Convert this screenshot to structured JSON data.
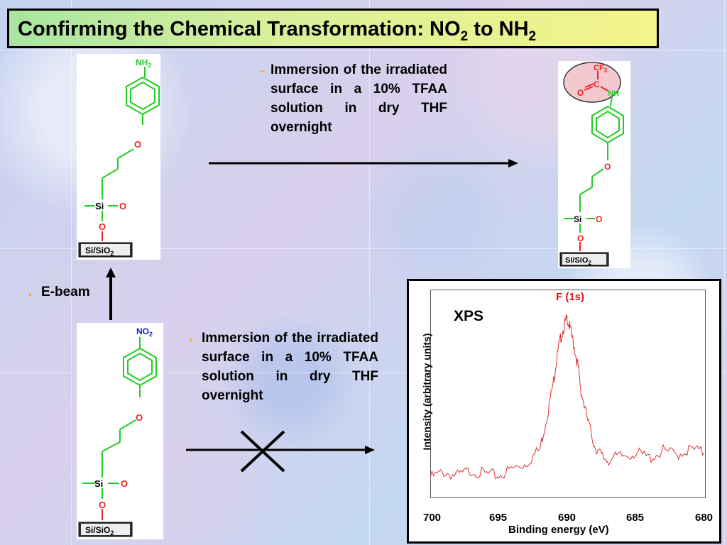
{
  "title": {
    "main": "Confirming the Chemical Transformation: NO",
    "sub1": "2",
    "mid": " to NH",
    "sub2": "2"
  },
  "top_step": {
    "bullet": "•",
    "text": "Immersion of the irradiated surface in a 10% TFAA solution in dry THF overnight"
  },
  "bottom_step": {
    "bullet": "•",
    "text": "Immersion of the irradiated surface in a 10% TFAA solution in dry THF overnight"
  },
  "ebeam": {
    "bullet": "•",
    "text": "E-beam"
  },
  "molecules": {
    "substrate": "Si/SiO",
    "substrate_sub": "2",
    "si": "Si",
    "o": "O",
    "nh2": "NH",
    "nh2_sub": "2",
    "no2": "NO",
    "no2_sub": "2",
    "nh": "NH",
    "c": "C",
    "cf3": "CF",
    "cf3_sub": "3"
  },
  "xps": {
    "label": "XPS",
    "peak_label": "F (1s)",
    "xlabel": "Binding energy (eV)",
    "ylabel": "Intensity (arbitrary units)",
    "x_ticks": [
      "700",
      "695",
      "690",
      "685",
      "680"
    ]
  },
  "chart_data": {
    "type": "line",
    "title": "F (1s)",
    "xlabel": "Binding energy (eV)",
    "ylabel": "Intensity (arbitrary units)",
    "xlim": [
      700,
      680
    ],
    "x_reversed": true,
    "series": [
      {
        "name": "F (1s)",
        "color": "#e03030",
        "x": [
          700,
          699,
          698,
          697,
          696,
          695,
          694,
          693,
          692,
          691.5,
          691,
          690.8,
          690.5,
          690.2,
          690,
          689.8,
          689.5,
          689.2,
          689,
          688.5,
          688,
          687.5,
          687,
          686,
          685,
          684,
          683,
          682,
          681,
          680
        ],
        "y": [
          0.06,
          0.09,
          0.07,
          0.1,
          0.08,
          0.07,
          0.11,
          0.14,
          0.22,
          0.4,
          0.6,
          0.72,
          0.84,
          0.92,
          0.96,
          0.9,
          0.8,
          0.68,
          0.55,
          0.38,
          0.24,
          0.18,
          0.16,
          0.18,
          0.2,
          0.17,
          0.21,
          0.19,
          0.22,
          0.2
        ]
      }
    ]
  },
  "colors": {
    "bond_green": "#22cc22",
    "oxygen_red": "#ee2222",
    "nitro_blue": "#1a1acc",
    "bullet": "#f0b400",
    "plot_line": "#e03030"
  }
}
